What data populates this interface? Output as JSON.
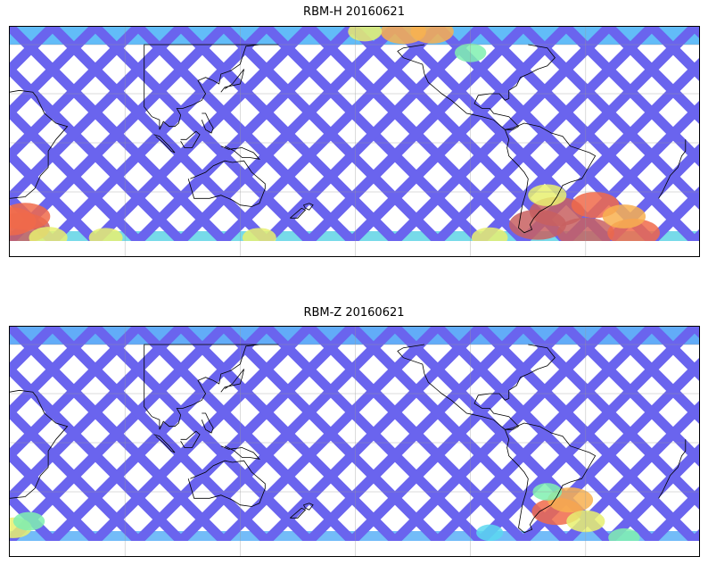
{
  "panels": [
    {
      "id": "top",
      "title": "RBM-H 20160621",
      "hotspots": [
        {
          "lat": -52,
          "lon": 26,
          "level": 1.0
        },
        {
          "lat": -48,
          "lon": 20,
          "level": 0.9
        },
        {
          "lat": -45,
          "lon": 28,
          "level": 0.85
        },
        {
          "lat": -58,
          "lon": 40,
          "level": 0.6
        },
        {
          "lat": -58,
          "lon": 70,
          "level": 0.5
        },
        {
          "lat": -50,
          "lon": 295,
          "level": 1.0
        },
        {
          "lat": -55,
          "lon": 320,
          "level": 1.0
        },
        {
          "lat": -55,
          "lon": 345,
          "level": 0.9
        },
        {
          "lat": -42,
          "lon": 305,
          "level": 0.95
        },
        {
          "lat": -38,
          "lon": 325,
          "level": 0.8
        },
        {
          "lat": -45,
          "lon": 340,
          "level": 0.7
        },
        {
          "lat": -32,
          "lon": 300,
          "level": 0.6
        },
        {
          "lat": 68,
          "lon": 225,
          "level": 0.75
        },
        {
          "lat": 68,
          "lon": 240,
          "level": 0.7
        },
        {
          "lat": 68,
          "lon": 205,
          "level": 0.5
        },
        {
          "lat": 55,
          "lon": 260,
          "level": 0.45
        },
        {
          "lat": -58,
          "lon": 150,
          "level": 0.5
        },
        {
          "lat": -58,
          "lon": 270,
          "level": 0.55
        }
      ]
    },
    {
      "id": "bottom",
      "title": "RBM-Z 20160621",
      "hotspots": [
        {
          "lat": -42,
          "lon": 305,
          "level": 0.85
        },
        {
          "lat": -35,
          "lon": 312,
          "level": 0.75
        },
        {
          "lat": -48,
          "lon": 320,
          "level": 0.6
        },
        {
          "lat": -52,
          "lon": 22,
          "level": 0.55
        },
        {
          "lat": -48,
          "lon": 30,
          "level": 0.45
        },
        {
          "lat": -58,
          "lon": 340,
          "level": 0.45
        },
        {
          "lat": -55,
          "lon": 270,
          "level": 0.35
        },
        {
          "lat": -30,
          "lon": 300,
          "level": 0.4
        }
      ]
    }
  ],
  "map": {
    "lon_range": [
      20,
      380
    ],
    "lat_range": [
      -60,
      60
    ],
    "grid_lons": [
      80,
      140,
      200,
      260,
      320
    ],
    "grid_lats": [
      -30,
      0,
      30,
      60
    ],
    "data_lat_range": [
      -60,
      71
    ],
    "colormap": [
      "#6a5cf0",
      "#5aa0f8",
      "#5ad8f0",
      "#80f0b0",
      "#e8f070",
      "#f8b050",
      "#f06a4a",
      "#c86060"
    ]
  }
}
